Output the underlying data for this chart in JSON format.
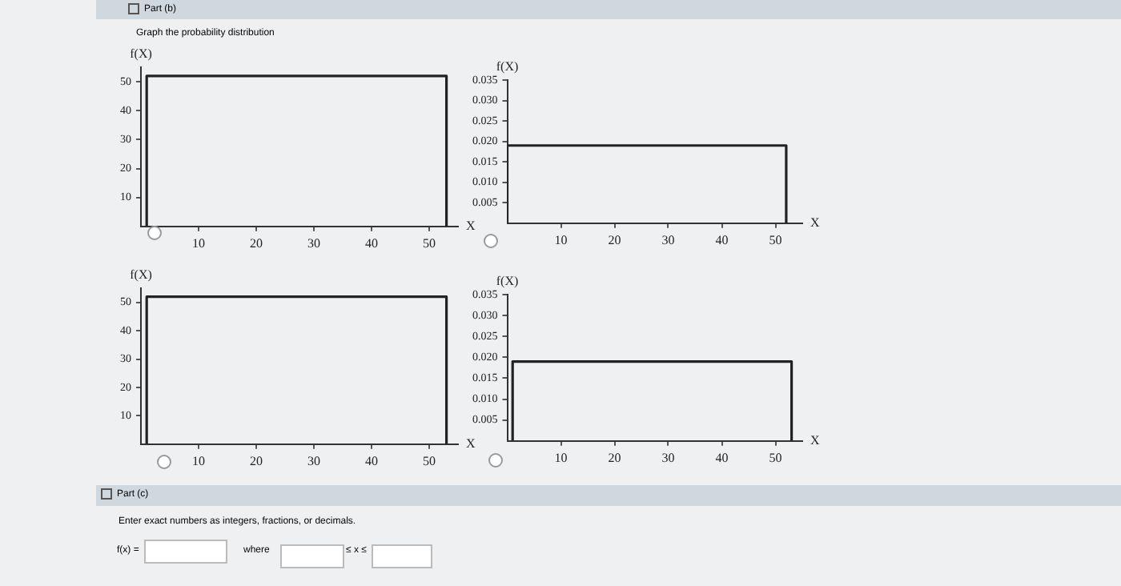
{
  "chart_data": [
    {
      "type": "line",
      "title": "Graph the probability distribution",
      "annotations": [
        "Part (b)"
      ],
      "xlabel": "X",
      "ylabel": "f(X)",
      "marker": "none",
      "xlim": [
        0,
        55
      ],
      "ylim": [
        0,
        55
      ],
      "xticks": [
        10,
        20,
        30,
        40,
        50
      ],
      "yticks": [
        10,
        20,
        30,
        40,
        50
      ],
      "series": [
        {
          "color": "#222222",
          "x": [
            1,
            1,
            53,
            53
          ],
          "values": [
            0,
            52,
            52,
            0
          ]
        }
      ]
    },
    {
      "type": "line",
      "xlabel": "X",
      "ylabel": "f(X)",
      "marker": "none",
      "xlim": [
        0,
        55
      ],
      "ylim": [
        0,
        0.035
      ],
      "xticks": [
        10,
        20,
        30,
        40,
        50
      ],
      "yticks": [
        {
          "value": 0.005,
          "label": "0.005"
        },
        {
          "value": 0.01,
          "label": "0.010"
        },
        {
          "value": 0.015,
          "label": "0.015"
        },
        {
          "value": 0.02,
          "label": "0.020"
        },
        {
          "value": 0.025,
          "label": "0.025"
        },
        {
          "value": 0.03,
          "label": "0.030"
        },
        {
          "value": 0.035,
          "label": "0.035"
        }
      ],
      "series": [
        {
          "color": "#222222",
          "x": [
            0,
            0,
            52,
            52
          ],
          "values": [
            0,
            0.019,
            0.019,
            0
          ]
        }
      ]
    },
    {
      "type": "line",
      "xlabel": "X",
      "ylabel": "f(X)",
      "marker": "none",
      "xlim": [
        0,
        55
      ],
      "ylim": [
        0,
        55
      ],
      "xticks": [
        10,
        20,
        30,
        40,
        50
      ],
      "yticks": [
        10,
        20,
        30,
        40,
        50
      ],
      "series": [
        {
          "color": "#222222",
          "x": [
            1,
            1,
            53,
            53
          ],
          "values": [
            0,
            52,
            52,
            0
          ]
        }
      ]
    },
    {
      "type": "line",
      "xlabel": "X",
      "ylabel": "f(X)",
      "marker": "none",
      "xlim": [
        0,
        55
      ],
      "ylim": [
        0,
        0.035
      ],
      "xticks": [
        10,
        20,
        30,
        40,
        50
      ],
      "yticks": [
        {
          "value": 0.005,
          "label": "0.005"
        },
        {
          "value": 0.01,
          "label": "0.010"
        },
        {
          "value": 0.015,
          "label": "0.015"
        },
        {
          "value": 0.02,
          "label": "0.020"
        },
        {
          "value": 0.025,
          "label": "0.025"
        },
        {
          "value": 0.03,
          "label": "0.030"
        },
        {
          "value": 0.035,
          "label": "0.035"
        }
      ],
      "series": [
        {
          "color": "#222222",
          "x": [
            1,
            1,
            53,
            53
          ],
          "values": [
            0,
            0.019,
            0.019,
            0
          ]
        }
      ]
    },
    {
      "type": "other",
      "title": "Part (c)",
      "annotations": [
        "Enter exact numbers as integers, fractions, or decimals.",
        "f(x) =",
        "where",
        "≤ x ≤"
      ]
    }
  ]
}
